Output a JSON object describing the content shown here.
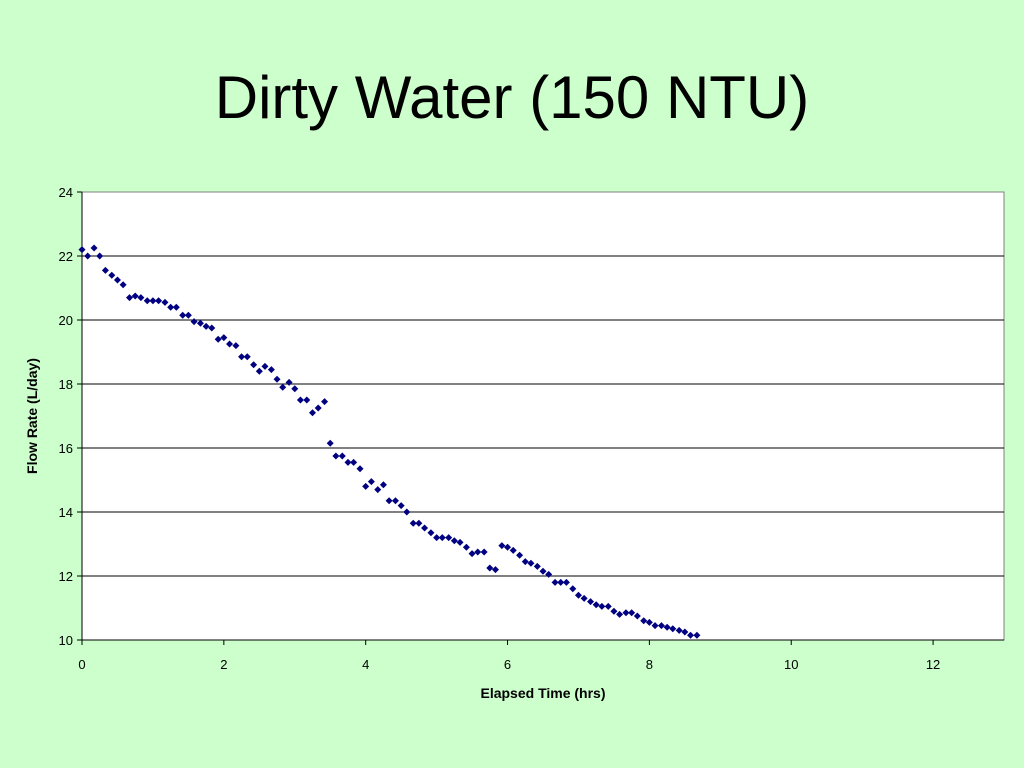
{
  "slide": {
    "title": "Dirty Water (150 NTU)",
    "background": "#ccffcc"
  },
  "chart_data": {
    "type": "scatter",
    "title": "",
    "xlabel": "Elapsed Time (hrs)",
    "ylabel": "Flow Rate (L/day)",
    "xlim": [
      0,
      13
    ],
    "ylim": [
      10,
      24
    ],
    "xticks": [
      0,
      2,
      4,
      6,
      8,
      10,
      12
    ],
    "yticks": [
      10,
      12,
      14,
      16,
      18,
      20,
      22,
      24
    ],
    "grid": "horizontal",
    "legend": "none",
    "plot_background": "#ffffff",
    "marker_color": "#000080",
    "marker": "diamond",
    "series": [
      {
        "points": [
          [
            0.0,
            22.2
          ],
          [
            0.08,
            22.0
          ],
          [
            0.17,
            22.25
          ],
          [
            0.25,
            22.0
          ],
          [
            0.33,
            21.55
          ],
          [
            0.42,
            21.4
          ],
          [
            0.5,
            21.25
          ],
          [
            0.58,
            21.1
          ],
          [
            0.67,
            20.7
          ],
          [
            0.75,
            20.75
          ],
          [
            0.83,
            20.7
          ],
          [
            0.92,
            20.6
          ],
          [
            1.0,
            20.6
          ],
          [
            1.08,
            20.6
          ],
          [
            1.17,
            20.55
          ],
          [
            1.25,
            20.4
          ],
          [
            1.33,
            20.4
          ],
          [
            1.42,
            20.15
          ],
          [
            1.5,
            20.15
          ],
          [
            1.58,
            19.95
          ],
          [
            1.67,
            19.9
          ],
          [
            1.75,
            19.8
          ],
          [
            1.83,
            19.75
          ],
          [
            1.92,
            19.4
          ],
          [
            2.0,
            19.45
          ],
          [
            2.08,
            19.25
          ],
          [
            2.17,
            19.2
          ],
          [
            2.25,
            18.85
          ],
          [
            2.33,
            18.85
          ],
          [
            2.42,
            18.6
          ],
          [
            2.5,
            18.4
          ],
          [
            2.58,
            18.55
          ],
          [
            2.67,
            18.45
          ],
          [
            2.75,
            18.15
          ],
          [
            2.83,
            17.9
          ],
          [
            2.92,
            18.05
          ],
          [
            3.0,
            17.85
          ],
          [
            3.08,
            17.5
          ],
          [
            3.17,
            17.5
          ],
          [
            3.25,
            17.1
          ],
          [
            3.33,
            17.25
          ],
          [
            3.42,
            17.45
          ],
          [
            3.5,
            16.15
          ],
          [
            3.58,
            15.75
          ],
          [
            3.67,
            15.75
          ],
          [
            3.75,
            15.55
          ],
          [
            3.83,
            15.55
          ],
          [
            3.92,
            15.35
          ],
          [
            4.0,
            14.8
          ],
          [
            4.08,
            14.95
          ],
          [
            4.17,
            14.7
          ],
          [
            4.25,
            14.85
          ],
          [
            4.33,
            14.35
          ],
          [
            4.42,
            14.35
          ],
          [
            4.5,
            14.2
          ],
          [
            4.58,
            14.0
          ],
          [
            4.67,
            13.65
          ],
          [
            4.75,
            13.65
          ],
          [
            4.83,
            13.5
          ],
          [
            4.92,
            13.35
          ],
          [
            5.0,
            13.2
          ],
          [
            5.08,
            13.2
          ],
          [
            5.17,
            13.2
          ],
          [
            5.25,
            13.1
          ],
          [
            5.33,
            13.05
          ],
          [
            5.42,
            12.9
          ],
          [
            5.5,
            12.7
          ],
          [
            5.58,
            12.75
          ],
          [
            5.67,
            12.75
          ],
          [
            5.75,
            12.25
          ],
          [
            5.83,
            12.2
          ],
          [
            5.92,
            12.95
          ],
          [
            6.0,
            12.9
          ],
          [
            6.08,
            12.8
          ],
          [
            6.17,
            12.65
          ],
          [
            6.25,
            12.45
          ],
          [
            6.33,
            12.4
          ],
          [
            6.42,
            12.3
          ],
          [
            6.5,
            12.15
          ],
          [
            6.58,
            12.05
          ],
          [
            6.67,
            11.8
          ],
          [
            6.75,
            11.8
          ],
          [
            6.83,
            11.8
          ],
          [
            6.92,
            11.6
          ],
          [
            7.0,
            11.4
          ],
          [
            7.08,
            11.3
          ],
          [
            7.17,
            11.2
          ],
          [
            7.25,
            11.1
          ],
          [
            7.33,
            11.05
          ],
          [
            7.42,
            11.05
          ],
          [
            7.5,
            10.9
          ],
          [
            7.58,
            10.8
          ],
          [
            7.67,
            10.85
          ],
          [
            7.75,
            10.85
          ],
          [
            7.83,
            10.75
          ],
          [
            7.92,
            10.6
          ],
          [
            8.0,
            10.55
          ],
          [
            8.08,
            10.45
          ],
          [
            8.17,
            10.45
          ],
          [
            8.25,
            10.4
          ],
          [
            8.33,
            10.35
          ],
          [
            8.42,
            10.3
          ],
          [
            8.5,
            10.25
          ],
          [
            8.58,
            10.15
          ],
          [
            8.67,
            10.15
          ]
        ]
      }
    ]
  }
}
